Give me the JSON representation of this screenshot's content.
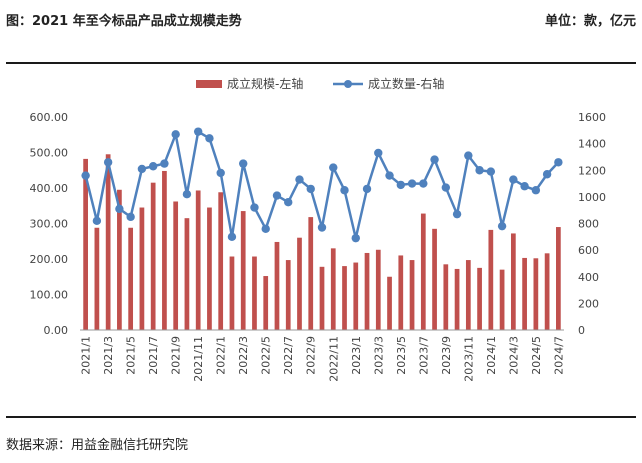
{
  "header": {
    "title": "图：2021 年至今标品产品成立规模走势",
    "unit": "单位：款，亿元"
  },
  "footer": {
    "source": "数据来源：用益金融信托研究院"
  },
  "colors": {
    "bar": "#C0504D",
    "line": "#4F81BD"
  },
  "chart_data": {
    "type": "bar",
    "categories": [
      "2021/1",
      "2021/2",
      "2021/3",
      "2021/4",
      "2021/5",
      "2021/6",
      "2021/7",
      "2021/8",
      "2021/9",
      "2021/10",
      "2021/11",
      "2021/12",
      "2022/1",
      "2022/2",
      "2022/3",
      "2022/4",
      "2022/5",
      "2022/6",
      "2022/7",
      "2022/8",
      "2022/9",
      "2022/10",
      "2022/11",
      "2022/12",
      "2023/1",
      "2023/2",
      "2023/3",
      "2023/4",
      "2023/5",
      "2023/6",
      "2023/7",
      "2023/8",
      "2023/9",
      "2023/10",
      "2023/11",
      "2023/12",
      "2024/1",
      "2024/2",
      "2024/3",
      "2024/4",
      "2024/5",
      "2024/6",
      "2024/7"
    ],
    "x_tick_labels": [
      "2021/1",
      "2021/3",
      "2021/5",
      "2021/7",
      "2021/9",
      "2021/11",
      "2022/1",
      "2022/3",
      "2022/5",
      "2022/7",
      "2022/9",
      "2022/11",
      "2023/1",
      "2023/3",
      "2023/5",
      "2023/7",
      "2023/9",
      "2023/11",
      "2024/1",
      "2024/3",
      "2024/5",
      "2024/7"
    ],
    "series": [
      {
        "name": "成立规模-左轴",
        "type": "bar",
        "axis": "left",
        "values": [
          482,
          288,
          495,
          395,
          288,
          345,
          415,
          448,
          362,
          315,
          393,
          345,
          388,
          207,
          335,
          207,
          152,
          248,
          197,
          260,
          318,
          178,
          230,
          180,
          190,
          217,
          226,
          150,
          210,
          197,
          328,
          285,
          185,
          172,
          197,
          175,
          282,
          170,
          272,
          203,
          202,
          216,
          290
        ]
      },
      {
        "name": "成立数量-右轴",
        "type": "line",
        "axis": "right",
        "values": [
          1160,
          820,
          1260,
          910,
          850,
          1210,
          1230,
          1250,
          1470,
          1020,
          1490,
          1440,
          1180,
          700,
          1250,
          920,
          760,
          1010,
          960,
          1130,
          1060,
          770,
          1220,
          1050,
          690,
          1060,
          1330,
          1160,
          1090,
          1100,
          1100,
          1280,
          1070,
          870,
          1310,
          1200,
          1190,
          780,
          1130,
          1080,
          1050,
          1170,
          1260
        ]
      }
    ],
    "y_left": {
      "ylim": [
        0,
        600
      ],
      "ticks": [
        "0.00",
        "100.00",
        "200.00",
        "300.00",
        "400.00",
        "500.00",
        "600.00"
      ]
    },
    "y_right": {
      "ylim": [
        0,
        1600
      ],
      "ticks": [
        "0",
        "200",
        "400",
        "600",
        "800",
        "1000",
        "1200",
        "1400",
        "1600"
      ]
    },
    "legend_position": "top-center"
  }
}
